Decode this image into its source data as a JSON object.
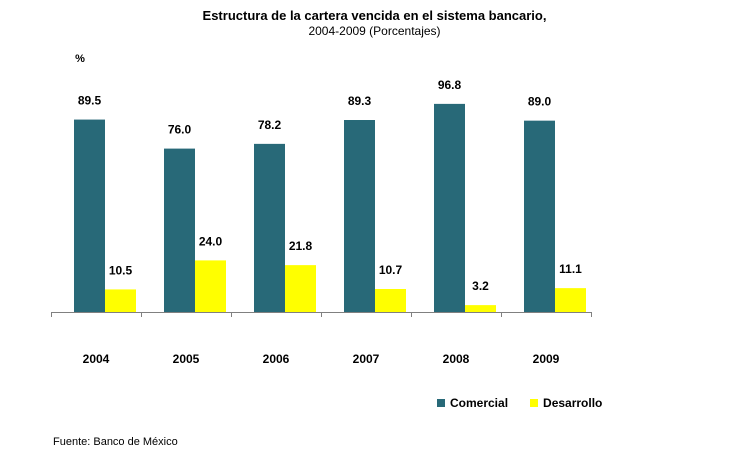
{
  "chart_data": {
    "type": "bar",
    "title": "Estructura de la cartera vencida en el sistema bancario,",
    "subtitle": "2004-2009 (Porcentajes)",
    "ylabel": "%",
    "categories": [
      "2004",
      "2005",
      "2006",
      "2007",
      "2008",
      "2009"
    ],
    "series": [
      {
        "name": "Comercial",
        "color": "#286978",
        "values": [
          89.5,
          76.0,
          78.2,
          89.3,
          96.8,
          89.0
        ]
      },
      {
        "name": "Desarrollo",
        "color": "#ffff00",
        "values": [
          10.5,
          24.0,
          21.8,
          10.7,
          3.2,
          11.1
        ]
      }
    ],
    "ylim": [
      0,
      100
    ],
    "grid": false,
    "legend_position": "bottom-right"
  },
  "source": "Fuente: Banco de México"
}
